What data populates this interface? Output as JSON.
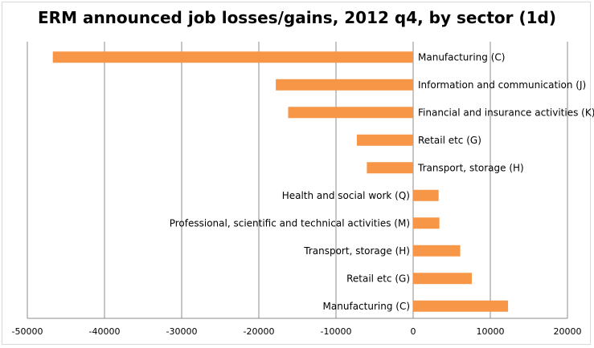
{
  "chart_data": {
    "type": "bar",
    "orientation": "horizontal",
    "title": "ERM announced job losses/gains, 2012 q4, by sector (1d)",
    "xlabel": "",
    "ylabel": "",
    "xlim": [
      -50000,
      20000
    ],
    "xticks": [
      -50000,
      -40000,
      -30000,
      -20000,
      -10000,
      0,
      10000,
      20000
    ],
    "grid": "vertical",
    "legend": "none",
    "bar_color": "#F79646",
    "categories": [
      "Manufacturing (C)",
      "Information and communication (J)",
      "Financial and insurance activities (K)",
      "Retail etc (G)",
      "Transport, storage (H)",
      "Health and social work (Q)",
      "Professional, scientific and technical activities (M)",
      "Transport, storage (H)",
      "Retail etc (G)",
      "Manufacturing (C)"
    ],
    "values": [
      -46700,
      -17800,
      -16200,
      -7300,
      -6000,
      3300,
      3400,
      6100,
      7600,
      12300
    ]
  }
}
